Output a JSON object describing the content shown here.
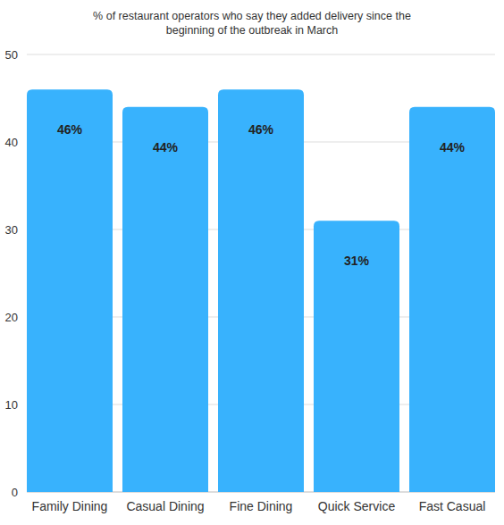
{
  "chart_data": {
    "type": "bar",
    "title": "% of restaurant operators who say they added delivery since the beginning of the outbreak in March",
    "categories": [
      "Family Dining",
      "Casual Dining",
      "Fine Dining",
      "Quick Service",
      "Fast Casual"
    ],
    "values": [
      46,
      44,
      46,
      31,
      44
    ],
    "value_labels": [
      "46%",
      "44%",
      "46%",
      "31%",
      "44%"
    ],
    "color": "#38b2fd",
    "ylim": [
      0,
      50
    ],
    "yticks": [
      0,
      10,
      20,
      30,
      40,
      50
    ],
    "grid": true,
    "data_labels": true
  }
}
